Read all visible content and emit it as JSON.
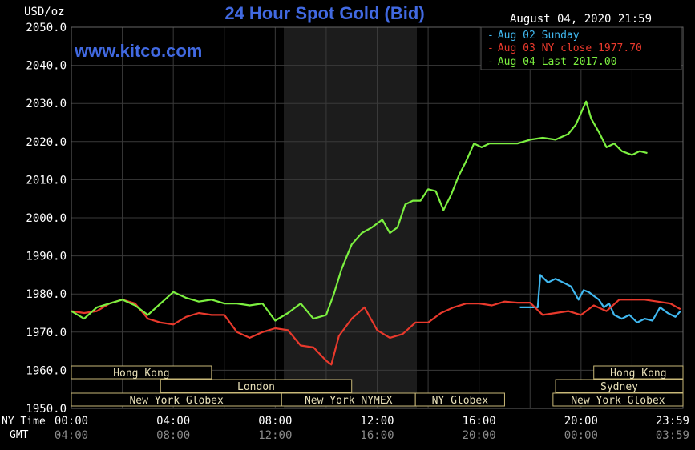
{
  "header": {
    "unit": "USD/oz",
    "title": "24 Hour Spot Gold (Bid)",
    "timestamp": "August 04, 2020 21:59",
    "watermark": "www.kitco.com"
  },
  "colors": {
    "background": "#000000",
    "grid": "#3a3a3a",
    "night_band": "#1c1c1c",
    "text": "#ffffff",
    "title": "#4169e1",
    "session_border": "#c8b878",
    "aug02": "#40b8f0",
    "aug03": "#e8392c",
    "aug04": "#7cf040"
  },
  "legend": {
    "placement": "top-right",
    "items": [
      {
        "marker": "-",
        "label": "Aug 02 Sunday"
      },
      {
        "marker": "-",
        "label": "Aug 03 NY close 1977.70"
      },
      {
        "marker": "-",
        "label": "Aug 04 Last 2017.00"
      }
    ]
  },
  "axis": {
    "x_row1_label": "NY Time",
    "x_row2_label": "GMT",
    "ny_ticks": [
      "00:00",
      "04:00",
      "08:00",
      "12:00",
      "16:00",
      "20:00",
      "23:59"
    ],
    "gmt_ticks": [
      "04:00",
      "08:00",
      "12:00",
      "16:00",
      "20:00",
      "00:00",
      "03:59"
    ]
  },
  "sessions": [
    {
      "label": "Hong Kong",
      "row": 1,
      "start": 0,
      "end": 5.5
    },
    {
      "label": "Hong Kong",
      "row": 1,
      "start": 20.5,
      "end": 24
    },
    {
      "label": "London",
      "row": 2,
      "start": 3.5,
      "end": 11
    },
    {
      "label": "Sydney",
      "row": 2,
      "start": 19,
      "end": 24
    },
    {
      "label": "New York Globex",
      "row": 3,
      "start": 0,
      "end": 8.25
    },
    {
      "label": "New York NYMEX",
      "row": 3,
      "start": 8.25,
      "end": 13.5
    },
    {
      "label": "NY Globex",
      "row": 3,
      "start": 13.5,
      "end": 17
    },
    {
      "label": "New York Globex",
      "row": 3,
      "start": 18.9,
      "end": 24
    }
  ],
  "chart_data": {
    "type": "line",
    "title": "24 Hour Spot Gold (Bid)",
    "ylabel": "USD/oz",
    "xlabel": "NY Time",
    "ylim": [
      1950,
      2050
    ],
    "xlim": [
      0,
      24
    ],
    "y_ticks": [
      1950.0,
      1960.0,
      1970.0,
      1980.0,
      1990.0,
      2000.0,
      2010.0,
      2020.0,
      2030.0,
      2040.0,
      2050.0
    ],
    "y_tick_labels": [
      "1950.0",
      "1960.0",
      "1970.0",
      "1980.0",
      "1990.0",
      "2000.0",
      "2010.0",
      "2020.0",
      "2030.0",
      "2040.0",
      "2050.0"
    ],
    "grid": true,
    "series": [
      {
        "name": "Aug 02 Sunday",
        "x": [
          17.6,
          18.3,
          18.4,
          18.7,
          19.0,
          19.3,
          19.6,
          19.9,
          20.1,
          20.3,
          20.5,
          20.7,
          20.9,
          21.1,
          21.3,
          21.6,
          21.9,
          22.2,
          22.5,
          22.8,
          23.1,
          23.4,
          23.7,
          23.9
        ],
        "values": [
          1976.5,
          1976.5,
          1985,
          1983,
          1984,
          1983,
          1982,
          1978.5,
          1981,
          1980.5,
          1979.5,
          1978.5,
          1976.5,
          1977.5,
          1974.5,
          1973.5,
          1974.5,
          1972.5,
          1973.5,
          1973,
          1976.5,
          1975,
          1974,
          1975.5
        ]
      },
      {
        "name": "Aug 03 NY close 1977.70",
        "x": [
          0,
          0.5,
          1.0,
          1.5,
          2.0,
          2.5,
          3.0,
          3.5,
          4.0,
          4.5,
          5.0,
          5.5,
          6.0,
          6.5,
          7.0,
          7.5,
          8.0,
          8.5,
          9.0,
          9.5,
          10.0,
          10.2,
          10.5,
          11.0,
          11.5,
          12.0,
          12.5,
          13.0,
          13.5,
          14.0,
          14.5,
          15.0,
          15.5,
          16.0,
          16.5,
          17.0,
          17.5,
          18.0,
          18.5,
          19.0,
          19.5,
          20.0,
          20.5,
          21.0,
          21.5,
          22.0,
          22.5,
          23.0,
          23.5,
          23.9
        ],
        "values": [
          1975.5,
          1975,
          1975.5,
          1977.5,
          1978.5,
          1977.5,
          1973.5,
          1972.5,
          1972,
          1974,
          1975,
          1974.5,
          1974.5,
          1970,
          1968.5,
          1970,
          1971,
          1970.5,
          1966.5,
          1966,
          1962.5,
          1961.5,
          1969,
          1973.5,
          1976.5,
          1970.5,
          1968.5,
          1969.5,
          1972.5,
          1972.5,
          1975,
          1976.5,
          1977.5,
          1977.5,
          1977,
          1978,
          1977.7,
          1977.7,
          1974.5,
          1975,
          1975.5,
          1974.5,
          1977,
          1975.5,
          1978.5,
          1978.5,
          1978.5,
          1978,
          1977.5,
          1976
        ]
      },
      {
        "name": "Aug 04 Last 2017.00",
        "x": [
          0,
          0.5,
          1.0,
          1.5,
          2.0,
          2.5,
          3.0,
          3.5,
          4.0,
          4.5,
          5.0,
          5.5,
          6.0,
          6.5,
          7.0,
          7.5,
          8.0,
          8.5,
          9.0,
          9.5,
          10.0,
          10.3,
          10.6,
          11.0,
          11.4,
          11.8,
          12.2,
          12.5,
          12.8,
          13.1,
          13.4,
          13.7,
          14.0,
          14.3,
          14.6,
          14.9,
          15.2,
          15.5,
          15.8,
          16.1,
          16.4,
          16.7,
          17.0,
          17.5,
          18.0,
          18.5,
          19.0,
          19.5,
          19.8,
          20.0,
          20.2,
          20.4,
          20.7,
          21.0,
          21.3,
          21.6,
          22.0,
          22.3,
          22.6
        ],
        "values": [
          1975.5,
          1973.5,
          1976.5,
          1977.5,
          1978.5,
          1977,
          1974.5,
          1977.5,
          1980.5,
          1979,
          1978,
          1978.5,
          1977.5,
          1977.5,
          1977,
          1977.5,
          1973,
          1975,
          1977.5,
          1973.5,
          1974.5,
          1980,
          1986.5,
          1993,
          1996,
          1997.5,
          1999.5,
          1996,
          1997.5,
          2003.5,
          2004.5,
          2004.5,
          2007.5,
          2007,
          2002,
          2006,
          2011,
          2015,
          2019.5,
          2018.5,
          2019.5,
          2019.5,
          2019.5,
          2019.5,
          2020.5,
          2021,
          2020.5,
          2022,
          2024.5,
          2027.5,
          2030.5,
          2026,
          2022.5,
          2018.5,
          2019.5,
          2017.5,
          2016.5,
          2017.5,
          2017
        ]
      }
    ]
  }
}
